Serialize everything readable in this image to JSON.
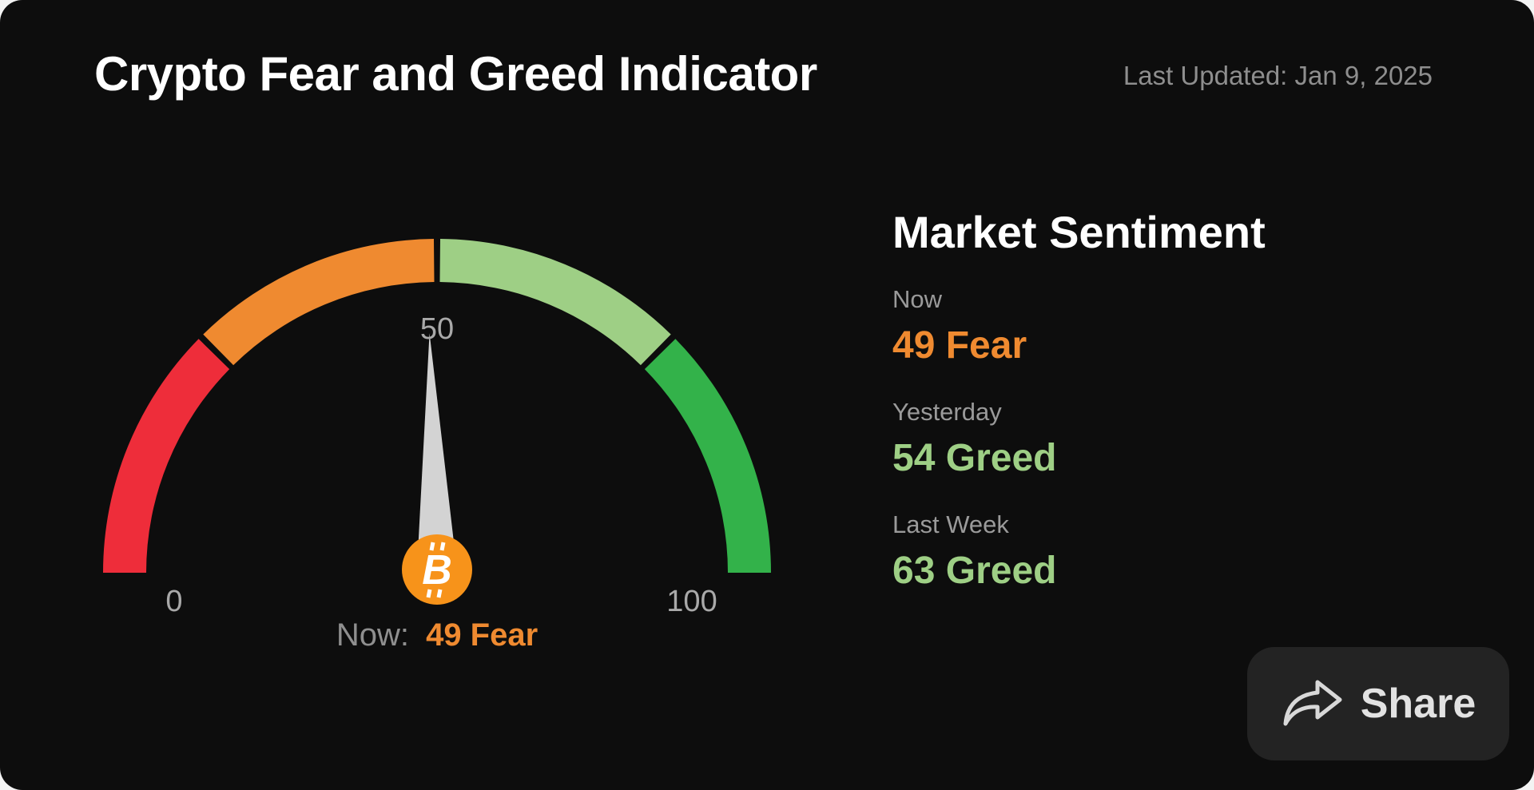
{
  "header": {
    "title": "Crypto Fear and Greed Indicator",
    "last_updated": "Last Updated: Jan 9, 2025"
  },
  "gauge": {
    "value": 49,
    "min": 0,
    "max": 100,
    "tick_min": "0",
    "tick_mid": "50",
    "tick_max": "100",
    "segments": [
      {
        "from": 0,
        "to": 25,
        "color": "#ee2d3a"
      },
      {
        "from": 25,
        "to": 50,
        "color": "#ef8a30"
      },
      {
        "from": 50,
        "to": 75,
        "color": "#9ecf85"
      },
      {
        "from": 75,
        "to": 100,
        "color": "#33b24a"
      }
    ],
    "needle_color": "#d3d3d3",
    "badge_icon": "bitcoin-icon",
    "badge_color": "#f7931a",
    "now_prefix": "Now:",
    "now_value": "49 Fear",
    "now_color": "#ef8a30"
  },
  "sentiment": {
    "title": "Market Sentiment",
    "rows": [
      {
        "label": "Now",
        "value": "49 Fear",
        "color": "#ef8a30"
      },
      {
        "label": "Yesterday",
        "value": "54 Greed",
        "color": "#9ecf85"
      },
      {
        "label": "Last Week",
        "value": "63 Greed",
        "color": "#9ecf85"
      }
    ]
  },
  "share": {
    "label": "Share",
    "icon": "share-arrow-icon"
  }
}
